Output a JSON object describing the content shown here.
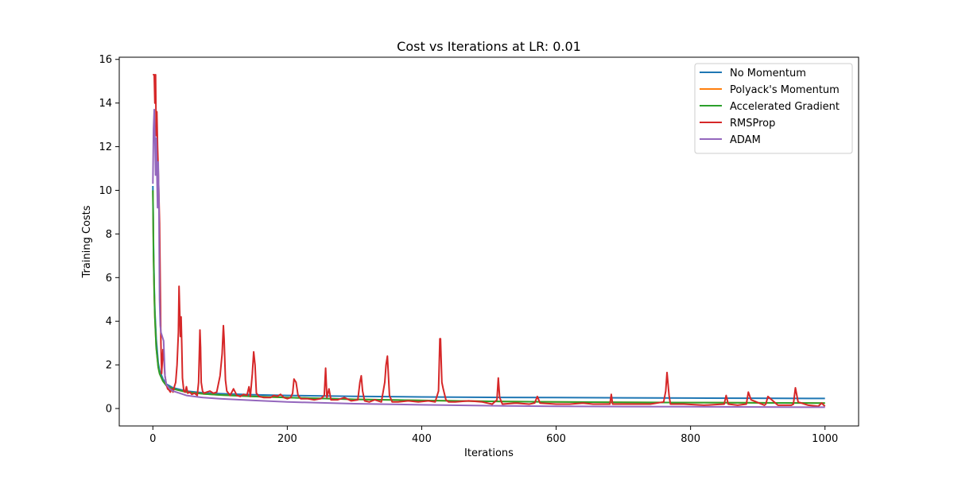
{
  "chart_data": {
    "type": "line",
    "title": "Cost vs Iterations at LR: 0.01",
    "xlabel": "Iterations",
    "ylabel": "Training Costs",
    "xlim": [
      -50,
      1050
    ],
    "ylim": [
      -0.8,
      16.1
    ],
    "xticks": [
      0,
      200,
      400,
      600,
      800,
      1000
    ],
    "yticks": [
      0,
      2,
      4,
      6,
      8,
      10,
      12,
      14,
      16
    ],
    "grid": false,
    "legend_position": "top-right",
    "series": [
      {
        "name": "No Momentum",
        "color": "#1f77b4",
        "x": [
          0,
          1,
          2,
          3,
          5,
          8,
          10,
          15,
          20,
          30,
          50,
          75,
          100,
          150,
          200,
          300,
          400,
          500,
          600,
          700,
          800,
          900,
          1000
        ],
        "y": [
          10.2,
          7.5,
          5.6,
          4.5,
          3.2,
          2.1,
          1.75,
          1.35,
          1.12,
          0.95,
          0.8,
          0.72,
          0.68,
          0.63,
          0.6,
          0.56,
          0.53,
          0.51,
          0.5,
          0.49,
          0.48,
          0.47,
          0.46
        ]
      },
      {
        "name": "Polyack's Momentum",
        "color": "#ff7f0e",
        "x": [
          0,
          1,
          2,
          3,
          5,
          8,
          10,
          15,
          20,
          30,
          50,
          75,
          100,
          150,
          200,
          300,
          400,
          500,
          600,
          700,
          800,
          900,
          1000
        ],
        "y": [
          10.0,
          7.0,
          5.3,
          4.2,
          2.8,
          1.9,
          1.6,
          1.25,
          1.05,
          0.9,
          0.75,
          0.67,
          0.62,
          0.55,
          0.5,
          0.42,
          0.37,
          0.33,
          0.3,
          0.28,
          0.27,
          0.26,
          0.25
        ]
      },
      {
        "name": "Accelerated Gradient",
        "color": "#2ca02c",
        "x": [
          0,
          1,
          2,
          3,
          5,
          8,
          10,
          15,
          20,
          30,
          50,
          75,
          100,
          150,
          200,
          300,
          400,
          500,
          600,
          700,
          800,
          900,
          1000
        ],
        "y": [
          10.0,
          7.0,
          5.3,
          4.2,
          2.8,
          1.9,
          1.6,
          1.25,
          1.05,
          0.9,
          0.75,
          0.67,
          0.62,
          0.55,
          0.5,
          0.42,
          0.37,
          0.33,
          0.3,
          0.28,
          0.27,
          0.26,
          0.25
        ]
      },
      {
        "name": "RMSProp",
        "color": "#d62728",
        "x": [
          0,
          2,
          3,
          4,
          5,
          6,
          7,
          8,
          10,
          12,
          13,
          15,
          16,
          18,
          20,
          22,
          24,
          26,
          28,
          30,
          32,
          34,
          36,
          38,
          39,
          40,
          41,
          42,
          43,
          44,
          46,
          48,
          50,
          52,
          55,
          58,
          62,
          66,
          68,
          70,
          71,
          72,
          74,
          76,
          80,
          85,
          90,
          95,
          100,
          103,
          105,
          106,
          108,
          110,
          115,
          120,
          125,
          130,
          135,
          140,
          143,
          145,
          148,
          150,
          152,
          154,
          158,
          165,
          175,
          180,
          185,
          190,
          195,
          200,
          205,
          208,
          210,
          213,
          216,
          220,
          230,
          240,
          250,
          255,
          257,
          259,
          262,
          265,
          275,
          285,
          295,
          305,
          308,
          310,
          312,
          315,
          322,
          330,
          340,
          345,
          347,
          349,
          352,
          356,
          365,
          380,
          395,
          410,
          420,
          425,
          427,
          428,
          430,
          432,
          436,
          440,
          450,
          470,
          490,
          505,
          512,
          514,
          516,
          520,
          540,
          560,
          568,
          572,
          576,
          600,
          620,
          640,
          655,
          680,
          682,
          684,
          700,
          720,
          740,
          760,
          763,
          765,
          768,
          770,
          790,
          820,
          850,
          853,
          856,
          870,
          883,
          886,
          890,
          910,
          912,
          915,
          930,
          950,
          953,
          956,
          960,
          975,
          990,
          995,
          1000
        ],
        "y": [
          15.3,
          15.3,
          14.0,
          15.3,
          12.5,
          13.6,
          12.0,
          11.0,
          8.5,
          3.0,
          1.6,
          2.7,
          2.5,
          1.5,
          1.1,
          0.9,
          0.85,
          0.75,
          0.9,
          0.75,
          1.0,
          1.2,
          2.0,
          3.5,
          5.6,
          4.4,
          3.3,
          4.2,
          3.0,
          1.4,
          0.8,
          0.75,
          1.0,
          0.7,
          0.75,
          0.65,
          0.7,
          0.6,
          1.2,
          3.6,
          2.8,
          1.2,
          0.8,
          0.7,
          0.75,
          0.8,
          0.7,
          0.75,
          1.5,
          2.5,
          3.8,
          3.2,
          1.3,
          0.8,
          0.6,
          0.9,
          0.6,
          0.55,
          0.65,
          0.6,
          1.0,
          0.55,
          1.6,
          2.6,
          2.0,
          0.7,
          0.55,
          0.5,
          0.5,
          0.6,
          0.55,
          0.65,
          0.5,
          0.45,
          0.5,
          0.7,
          1.35,
          1.2,
          0.6,
          0.45,
          0.45,
          0.4,
          0.45,
          0.6,
          1.85,
          0.5,
          0.9,
          0.4,
          0.4,
          0.5,
          0.35,
          0.4,
          1.2,
          1.5,
          0.8,
          0.35,
          0.3,
          0.4,
          0.3,
          1.2,
          2.0,
          2.4,
          0.6,
          0.3,
          0.3,
          0.35,
          0.3,
          0.35,
          0.3,
          0.8,
          3.2,
          3.2,
          1.2,
          0.9,
          0.4,
          0.3,
          0.3,
          0.35,
          0.3,
          0.2,
          0.4,
          1.4,
          0.5,
          0.2,
          0.25,
          0.2,
          0.25,
          0.55,
          0.25,
          0.2,
          0.2,
          0.25,
          0.2,
          0.2,
          0.65,
          0.2,
          0.2,
          0.2,
          0.2,
          0.3,
          0.8,
          1.65,
          0.6,
          0.2,
          0.2,
          0.15,
          0.2,
          0.6,
          0.2,
          0.15,
          0.2,
          0.75,
          0.4,
          0.15,
          0.2,
          0.55,
          0.15,
          0.15,
          0.2,
          0.95,
          0.3,
          0.15,
          0.1,
          0.25,
          0.1
        ]
      },
      {
        "name": "ADAM",
        "color": "#9467bd",
        "x": [
          0,
          1,
          2,
          3,
          4,
          5,
          6,
          7,
          8,
          9,
          10,
          11,
          12,
          14,
          16,
          18,
          20,
          25,
          30,
          40,
          50,
          75,
          100,
          150,
          200,
          300,
          400,
          500,
          600,
          700,
          800,
          900,
          1000
        ],
        "y": [
          10.3,
          12.8,
          13.7,
          12.5,
          10.7,
          12.4,
          10.9,
          9.2,
          11.3,
          9.5,
          5.0,
          3.8,
          3.5,
          3.3,
          3.1,
          1.5,
          1.1,
          0.9,
          0.8,
          0.7,
          0.6,
          0.5,
          0.45,
          0.37,
          0.3,
          0.22,
          0.17,
          0.13,
          0.1,
          0.09,
          0.08,
          0.07,
          0.06
        ]
      }
    ]
  }
}
